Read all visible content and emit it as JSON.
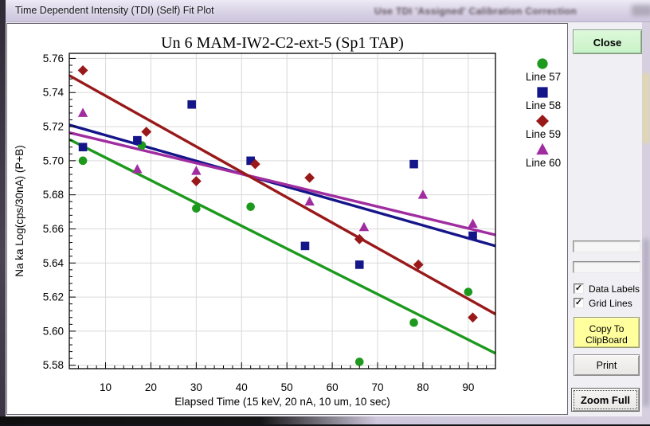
{
  "window": {
    "title": "Time Dependent Intensity (TDI) (Self) Fit Plot",
    "background_window_text": "Use TDI 'Assigned' Calibration Correction"
  },
  "chart_data": {
    "type": "scatter",
    "title": "Un   6  MAM-IW2-C2-ext-5 (Sp1 TAP)",
    "xlabel": "Elapsed Time (15 keV, 20 nA, 10 um, 10 sec)",
    "ylabel": "Na ka Log(cps/30nA) (P+B)",
    "xlim": [
      2,
      96
    ],
    "ylim": [
      5.578,
      5.763
    ],
    "x_major_ticks": [
      10,
      20,
      30,
      40,
      50,
      60,
      70,
      80,
      90
    ],
    "x_minor_step": 2,
    "y_major_ticks": [
      5.58,
      5.6,
      5.62,
      5.64,
      5.66,
      5.68,
      5.7,
      5.72,
      5.74,
      5.76
    ],
    "y_minor_step": 0.004,
    "grid": true,
    "legend_position": "right",
    "series": [
      {
        "name": "Line 57",
        "marker": "circle",
        "color": "#1d991d",
        "points": [
          [
            5,
            5.7
          ],
          [
            18,
            5.709
          ],
          [
            30,
            5.672
          ],
          [
            42,
            5.673
          ],
          [
            66,
            5.582
          ],
          [
            78,
            5.605
          ],
          [
            90,
            5.623
          ]
        ],
        "fit_line": {
          "x1": 2,
          "y1": 5.7125,
          "x2": 96,
          "y2": 5.587
        }
      },
      {
        "name": "Line 58",
        "marker": "square",
        "color": "#15158a",
        "points": [
          [
            5,
            5.708
          ],
          [
            17,
            5.712
          ],
          [
            29,
            5.733
          ],
          [
            42,
            5.7
          ],
          [
            54,
            5.65
          ],
          [
            66,
            5.639
          ],
          [
            78,
            5.698
          ],
          [
            91,
            5.656
          ]
        ],
        "fit_line": {
          "x1": 2,
          "y1": 5.721,
          "x2": 96,
          "y2": 5.65
        }
      },
      {
        "name": "Line 59",
        "marker": "diamond",
        "color": "#99191a",
        "points": [
          [
            5,
            5.753
          ],
          [
            19,
            5.717
          ],
          [
            30,
            5.688
          ],
          [
            43,
            5.698
          ],
          [
            55,
            5.69
          ],
          [
            66,
            5.654
          ],
          [
            79,
            5.639
          ],
          [
            91,
            5.608
          ]
        ],
        "fit_line": {
          "x1": 2,
          "y1": 5.75,
          "x2": 96,
          "y2": 5.61
        }
      },
      {
        "name": "Line 60",
        "marker": "triangle",
        "color": "#a02da0",
        "points": [
          [
            5,
            5.728
          ],
          [
            17,
            5.695
          ],
          [
            30,
            5.694
          ],
          [
            55,
            5.676
          ],
          [
            67,
            5.661
          ],
          [
            80,
            5.68
          ],
          [
            91,
            5.663
          ]
        ],
        "fit_line": {
          "x1": 2,
          "y1": 5.7165,
          "x2": 96,
          "y2": 5.6565
        }
      }
    ]
  },
  "controls": {
    "close_label": "Close",
    "close_color": "#c9f2c7",
    "fields": [
      {
        "value": ""
      },
      {
        "value": ""
      }
    ],
    "checkboxes": [
      {
        "label": "Data Labels",
        "checked": true
      },
      {
        "label": "Grid Lines",
        "checked": true
      }
    ],
    "copy_button_line1": "Copy To",
    "copy_button_line2": "ClipBoard",
    "copy_color": "#ffff9e",
    "print_label": "Print",
    "zoom_full_label": "Zoom Full"
  }
}
